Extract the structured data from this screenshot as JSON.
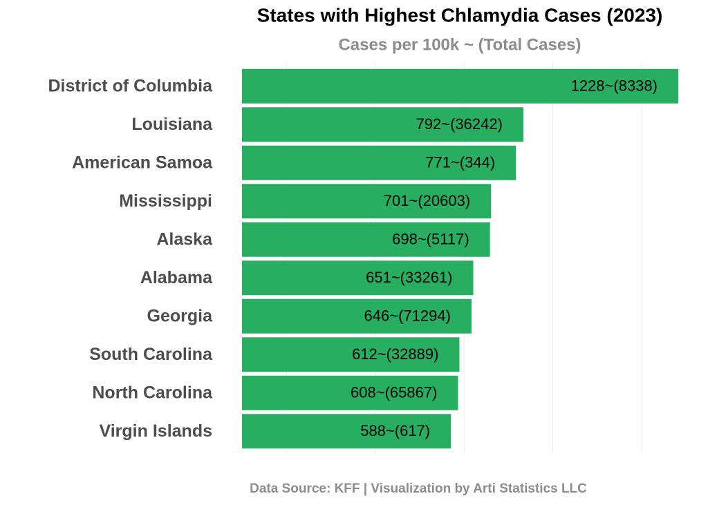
{
  "chart_data": {
    "type": "bar",
    "orientation": "horizontal",
    "title": "States with Highest Chlamydia Cases (2023)",
    "subtitle": "Cases per 100k ~ (Total Cases)",
    "caption": "Data Source: KFF | Visualization by Arti Statistics LLC",
    "categories": [
      "District of Columbia",
      "Louisiana",
      "American Samoa",
      "Mississippi",
      "Alaska",
      "Alabama",
      "Georgia",
      "South Carolina",
      "North Carolina",
      "Virgin Islands"
    ],
    "values": [
      1228,
      792,
      771,
      701,
      698,
      651,
      646,
      612,
      608,
      588
    ],
    "value_labels": [
      "1228~(8338)",
      "792~(36242)",
      "771~(344)",
      "701~(20603)",
      "698~(5117)",
      "651~(33261)",
      "646~(71294)",
      "612~(32889)",
      "608~(65867)",
      "588~(617)"
    ],
    "color": "#27ae60",
    "xlim": [
      0,
      1265
    ],
    "xticks": [
      125,
      375,
      625,
      875,
      1125
    ],
    "grid": true
  }
}
